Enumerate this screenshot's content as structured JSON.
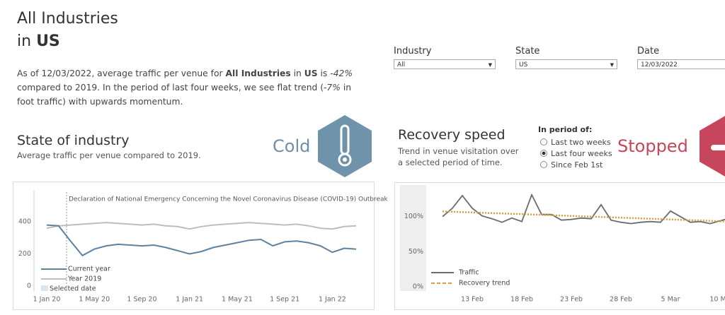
{
  "header": {
    "title_line1": "All Industries",
    "title_in": "in",
    "title_place": "US"
  },
  "filters": [
    {
      "label": "Industry",
      "value": "All"
    },
    {
      "label": "State",
      "value": "US"
    },
    {
      "label": "Date",
      "value": "12/03/2022"
    }
  ],
  "summary": [
    "As of 12/03/2022, average traffic per venue for ",
    "All Industries",
    " in ",
    "US",
    " is ",
    "-42%",
    " compared to 2019. In the period of last four weeks, we see flat trend (",
    "-7%",
    " in foot traffic) with upwards momentum."
  ],
  "state_of_industry": {
    "title": "State of industry",
    "subtitle": "Average traffic per venue compared to 2019.",
    "status": "Cold"
  },
  "recovery_speed": {
    "title": "Recovery speed",
    "subtitle": "Trend in venue visitation over a selected period of time.",
    "status": "Stopped",
    "period_label": "In period of:",
    "options": [
      "Last two weeks",
      "Last four weeks",
      "Since Feb 1st"
    ],
    "selected": "Last four weeks"
  },
  "chart_data": [
    {
      "type": "line",
      "annotation": "Declaration of National Emergency Concerning the Novel Coronavirus Disease (COVID-19) Outbreak",
      "categories": [
        "1 Jan 20",
        null,
        null,
        null,
        "1 May 20",
        null,
        null,
        null,
        "1 Sep 20",
        null,
        null,
        null,
        "1 Jan 21",
        null,
        null,
        null,
        "1 May 21",
        null,
        null,
        null,
        "1 Sep 21",
        null,
        null,
        null,
        "1 Jan 22",
        null,
        null
      ],
      "series": [
        {
          "name": "Year 2019",
          "color": "#bdbdbd",
          "values": [
            360,
            375,
            380,
            385,
            390,
            395,
            390,
            385,
            380,
            385,
            375,
            370,
            355,
            370,
            380,
            385,
            390,
            395,
            390,
            385,
            380,
            385,
            375,
            360,
            355,
            370,
            375
          ]
        },
        {
          "name": "Current year",
          "color": "#5d82a0",
          "values": [
            380,
            375,
            280,
            190,
            230,
            250,
            260,
            255,
            250,
            255,
            240,
            220,
            200,
            215,
            240,
            255,
            270,
            285,
            290,
            250,
            275,
            280,
            270,
            250,
            210,
            235,
            230
          ]
        }
      ],
      "highlight_label": "Selected date",
      "ylim": [
        0,
        600
      ],
      "yticks": [
        0,
        200,
        400
      ]
    },
    {
      "type": "line",
      "categories": [
        null,
        null,
        null,
        "13 Feb",
        null,
        null,
        null,
        null,
        "18 Feb",
        null,
        null,
        null,
        null,
        "23 Feb",
        null,
        null,
        null,
        null,
        "28 Feb",
        null,
        null,
        null,
        null,
        "5 Mar",
        null,
        null,
        null,
        null,
        "10 Ma",
        null
      ],
      "series": [
        {
          "name": "Traffic",
          "color": "#6b6b6b",
          "line_style": "solid",
          "values": [
            100,
            112,
            130,
            112,
            101,
            97,
            92,
            98,
            93,
            131,
            103,
            103,
            95,
            96,
            98,
            97,
            117,
            95,
            92,
            90,
            92,
            93,
            92,
            108,
            100,
            92,
            93,
            90,
            94,
            98
          ]
        },
        {
          "name": "Recovery trend",
          "color": "#e09a3e",
          "line_style": "dotted",
          "values": [
            107.5,
            107,
            106.5,
            106,
            105.5,
            105,
            104.5,
            104,
            103.5,
            103,
            102.5,
            102,
            101.5,
            101,
            100.5,
            100,
            99.5,
            99,
            98.5,
            98,
            97.5,
            97,
            96.5,
            96,
            95.5,
            95,
            94.5,
            94,
            93.5,
            93
          ]
        }
      ],
      "ylim": [
        0,
        140
      ],
      "yticks": [
        {
          "value": 0,
          "label": "0%"
        },
        {
          "value": 50,
          "label": "50%"
        },
        {
          "value": 100,
          "label": "100%"
        }
      ]
    }
  ]
}
